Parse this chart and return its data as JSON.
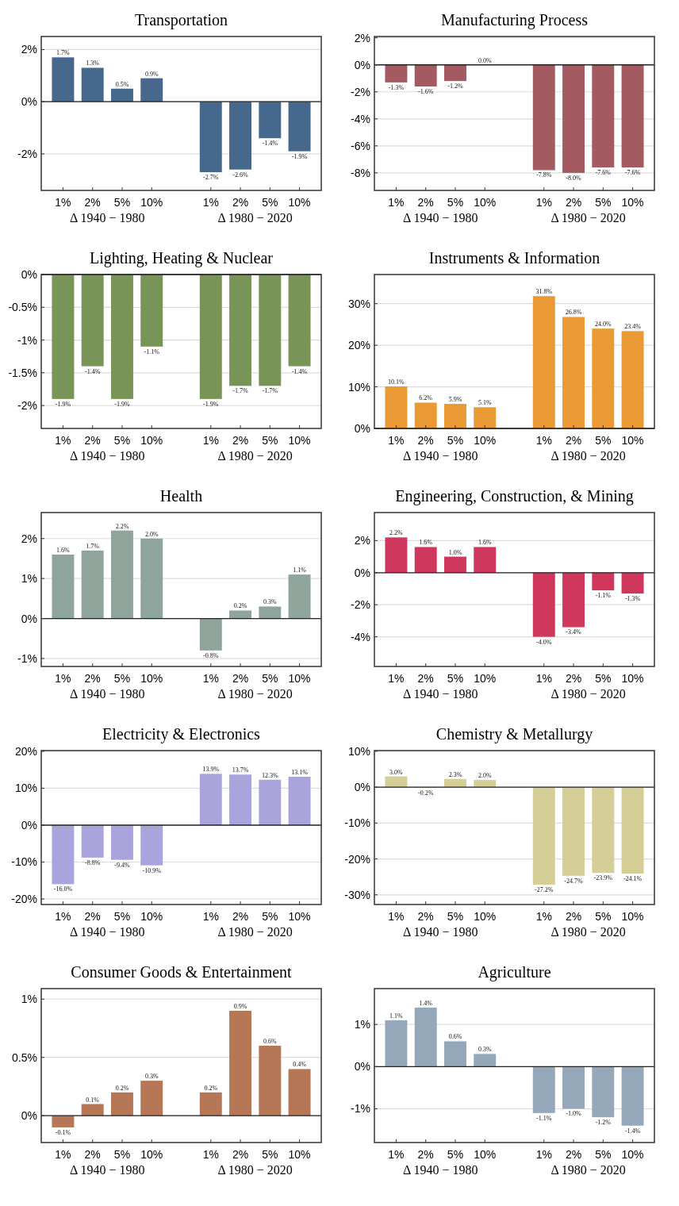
{
  "chart_data": [
    {
      "type": "bar",
      "title": "Transportation",
      "categories": [
        "1%",
        "2%",
        "5%",
        "10%",
        null,
        "1%",
        "2%",
        "5%",
        "10%"
      ],
      "values": [
        1.7,
        1.3,
        0.5,
        0.9,
        null,
        -2.7,
        -2.6,
        -1.4,
        -1.9
      ],
      "value_labels": [
        "1.7%",
        "1.3%",
        "0.5%",
        "0.9%",
        null,
        "-2.7%",
        "-2.6%",
        "-1.4%",
        "-1.9%"
      ],
      "color": "#46688c",
      "ylim": [
        -3.4,
        2.5
      ],
      "yticks": [
        {
          "value": -2,
          "label": "-2%"
        },
        {
          "value": 0,
          "label": "0%"
        },
        {
          "value": 2,
          "label": "2%"
        }
      ],
      "grid": "y",
      "annotations": [
        "Δ 1940 − 1980",
        "Δ 1980 − 2020"
      ]
    },
    {
      "type": "bar",
      "title": "Manufacturing Process",
      "categories": [
        "1%",
        "2%",
        "5%",
        "10%",
        null,
        "1%",
        "2%",
        "5%",
        "10%"
      ],
      "values": [
        -1.3,
        -1.6,
        -1.2,
        0.0,
        null,
        -7.8,
        -8.0,
        -7.6,
        -7.6
      ],
      "value_labels": [
        "-1.3%",
        "-1.6%",
        "-1.2%",
        "0.0%",
        null,
        "-7.8%",
        "-8.0%",
        "-7.6%",
        "-7.6%"
      ],
      "color": "#a35a60",
      "ylim": [
        -9.3,
        2.1
      ],
      "yticks": [
        {
          "value": -8,
          "label": "-8%"
        },
        {
          "value": -6,
          "label": "-6%"
        },
        {
          "value": -4,
          "label": "-4%"
        },
        {
          "value": -2,
          "label": "-2%"
        },
        {
          "value": 0,
          "label": "0%"
        },
        {
          "value": 2,
          "label": "2%"
        }
      ],
      "grid": "y",
      "annotations": [
        "Δ 1940 − 1980",
        "Δ 1980 − 2020"
      ]
    },
    {
      "type": "bar",
      "title": "Lighting, Heating & Nuclear",
      "categories": [
        "1%",
        "2%",
        "5%",
        "10%",
        null,
        "1%",
        "2%",
        "5%",
        "10%"
      ],
      "values": [
        -1.9,
        -1.4,
        -1.9,
        -1.1,
        null,
        -1.9,
        -1.7,
        -1.7,
        -1.4
      ],
      "value_labels": [
        "-1.9%",
        "-1.4%",
        "-1.9%",
        "-1.1%",
        null,
        "-1.9%",
        "-1.7%",
        "-1.7%",
        "-1.4%"
      ],
      "color": "#789457",
      "ylim": [
        -2.35,
        0
      ],
      "yticks": [
        {
          "value": -2,
          "label": "-2%"
        },
        {
          "value": -1.5,
          "label": "-1.5%"
        },
        {
          "value": -1,
          "label": "-1%"
        },
        {
          "value": -0.5,
          "label": "-0.5%"
        },
        {
          "value": 0,
          "label": "0%"
        }
      ],
      "grid": "y",
      "annotations": [
        "Δ 1940 − 1980",
        "Δ 1980 − 2020"
      ]
    },
    {
      "type": "bar",
      "title": "Instruments & Information",
      "categories": [
        "1%",
        "2%",
        "5%",
        "10%",
        null,
        "1%",
        "2%",
        "5%",
        "10%"
      ],
      "values": [
        10.1,
        6.2,
        5.9,
        5.1,
        null,
        31.8,
        26.8,
        24.0,
        23.4
      ],
      "value_labels": [
        "10.1%",
        "6.2%",
        "5.9%",
        "5.1%",
        null,
        "31.8%",
        "26.8%",
        "24.0%",
        "23.4%"
      ],
      "color": "#e99a35",
      "ylim": [
        0,
        37
      ],
      "yticks": [
        {
          "value": 0,
          "label": "0%"
        },
        {
          "value": 10,
          "label": "10%"
        },
        {
          "value": 20,
          "label": "20%"
        },
        {
          "value": 30,
          "label": "30%"
        }
      ],
      "grid": "y",
      "annotations": [
        "Δ 1940 − 1980",
        "Δ 1980 − 2020"
      ]
    },
    {
      "type": "bar",
      "title": "Health",
      "categories": [
        "1%",
        "2%",
        "5%",
        "10%",
        null,
        "1%",
        "2%",
        "5%",
        "10%"
      ],
      "values": [
        1.6,
        1.7,
        2.2,
        2.0,
        null,
        -0.8,
        0.2,
        0.3,
        1.1
      ],
      "value_labels": [
        "1.6%",
        "1.7%",
        "2.2%",
        "2.0%",
        null,
        "-0.8%",
        "0.2%",
        "0.3%",
        "1.1%"
      ],
      "color": "#8fa49b",
      "ylim": [
        -1.2,
        2.65
      ],
      "yticks": [
        {
          "value": -1,
          "label": "-1%"
        },
        {
          "value": 0,
          "label": "0%"
        },
        {
          "value": 1,
          "label": "1%"
        },
        {
          "value": 2,
          "label": "2%"
        }
      ],
      "grid": "y",
      "annotations": [
        "Δ 1940 − 1980",
        "Δ 1980 − 2020"
      ]
    },
    {
      "type": "bar",
      "title": "Engineering, Construction, & Mining",
      "categories": [
        "1%",
        "2%",
        "5%",
        "10%",
        null,
        "1%",
        "2%",
        "5%",
        "10%"
      ],
      "values": [
        2.2,
        1.6,
        1.0,
        1.6,
        null,
        -4.0,
        -3.4,
        -1.1,
        -1.3
      ],
      "value_labels": [
        "2.2%",
        "1.6%",
        "1.0%",
        "1.6%",
        null,
        "-4.0%",
        "-3.4%",
        "-1.1%",
        "-1.3%"
      ],
      "color": "#cf375d",
      "ylim": [
        -5.85,
        3.75
      ],
      "yticks": [
        {
          "value": -4,
          "label": "-4%"
        },
        {
          "value": -2,
          "label": "-2%"
        },
        {
          "value": 0,
          "label": "0%"
        },
        {
          "value": 2,
          "label": "2%"
        }
      ],
      "grid": "y",
      "annotations": [
        "Δ 1940 − 1980",
        "Δ 1980 − 2020"
      ]
    },
    {
      "type": "bar",
      "title": "Electricity & Electronics",
      "categories": [
        "1%",
        "2%",
        "5%",
        "10%",
        null,
        "1%",
        "2%",
        "5%",
        "10%"
      ],
      "values": [
        -16.0,
        -8.8,
        -9.4,
        -10.9,
        null,
        13.9,
        13.7,
        12.3,
        13.1
      ],
      "value_labels": [
        "-16.0%",
        "-8.8%",
        "-9.4%",
        "-10.9%",
        null,
        "13.9%",
        "13.7%",
        "12.3%",
        "13.1%"
      ],
      "color": "#aaa4dc",
      "ylim": [
        -21.5,
        20.2
      ],
      "yticks": [
        {
          "value": -20,
          "label": "-20%"
        },
        {
          "value": -10,
          "label": "-10%"
        },
        {
          "value": 0,
          "label": "0%"
        },
        {
          "value": 10,
          "label": "10%"
        },
        {
          "value": 20,
          "label": "20%"
        }
      ],
      "grid": "y",
      "annotations": [
        "Δ 1940 − 1980",
        "Δ 1980 − 2020"
      ]
    },
    {
      "type": "bar",
      "title": "Chemistry & Metallurgy",
      "categories": [
        "1%",
        "2%",
        "5%",
        "10%",
        null,
        "1%",
        "2%",
        "5%",
        "10%"
      ],
      "values": [
        3.0,
        -0.2,
        2.3,
        2.0,
        null,
        -27.2,
        -24.7,
        -23.9,
        -24.1
      ],
      "value_labels": [
        "3.0%",
        "-0.2%",
        "2.3%",
        "2.0%",
        null,
        "-27.2%",
        "-24.7%",
        "-23.9%",
        "-24.1%"
      ],
      "color": "#d6ce97",
      "ylim": [
        -32.7,
        10.2
      ],
      "yticks": [
        {
          "value": -30,
          "label": "-30%"
        },
        {
          "value": -20,
          "label": "-20%"
        },
        {
          "value": -10,
          "label": "-10%"
        },
        {
          "value": 0,
          "label": "0%"
        },
        {
          "value": 10,
          "label": "10%"
        }
      ],
      "grid": "y",
      "annotations": [
        "Δ 1940 − 1980",
        "Δ 1980 − 2020"
      ]
    },
    {
      "type": "bar",
      "title": "Consumer Goods & Entertainment",
      "categories": [
        "1%",
        "2%",
        "5%",
        "10%",
        null,
        "1%",
        "2%",
        "5%",
        "10%"
      ],
      "values": [
        -0.1,
        0.1,
        0.2,
        0.3,
        null,
        0.2,
        0.9,
        0.6,
        0.4
      ],
      "value_labels": [
        "-0.1%",
        "0.1%",
        "0.2%",
        "0.3%",
        null,
        "0.2%",
        "0.9%",
        "0.6%",
        "0.4%"
      ],
      "color": "#b67757",
      "ylim": [
        -0.23,
        1.09
      ],
      "yticks": [
        {
          "value": 0,
          "label": "0%"
        },
        {
          "value": 0.5,
          "label": "0.5%"
        },
        {
          "value": 1,
          "label": "1%"
        }
      ],
      "grid": "y",
      "annotations": [
        "Δ 1940 − 1980",
        "Δ 1980 − 2020"
      ]
    },
    {
      "type": "bar",
      "title": "Agriculture",
      "categories": [
        "1%",
        "2%",
        "5%",
        "10%",
        null,
        "1%",
        "2%",
        "5%",
        "10%"
      ],
      "values": [
        1.1,
        1.4,
        0.6,
        0.3,
        null,
        -1.1,
        -1.0,
        -1.2,
        -1.4
      ],
      "value_labels": [
        "1.1%",
        "1.4%",
        "0.6%",
        "0.3%",
        null,
        "-1.1%",
        "-1.0%",
        "-1.2%",
        "-1.4%"
      ],
      "color": "#94a8ba",
      "ylim": [
        -1.8,
        1.85
      ],
      "yticks": [
        {
          "value": -1,
          "label": "-1%"
        },
        {
          "value": 0,
          "label": "0%"
        },
        {
          "value": 1,
          "label": "1%"
        }
      ],
      "grid": "y",
      "annotations": [
        "Δ 1940 − 1980",
        "Δ 1980 − 2020"
      ]
    }
  ]
}
